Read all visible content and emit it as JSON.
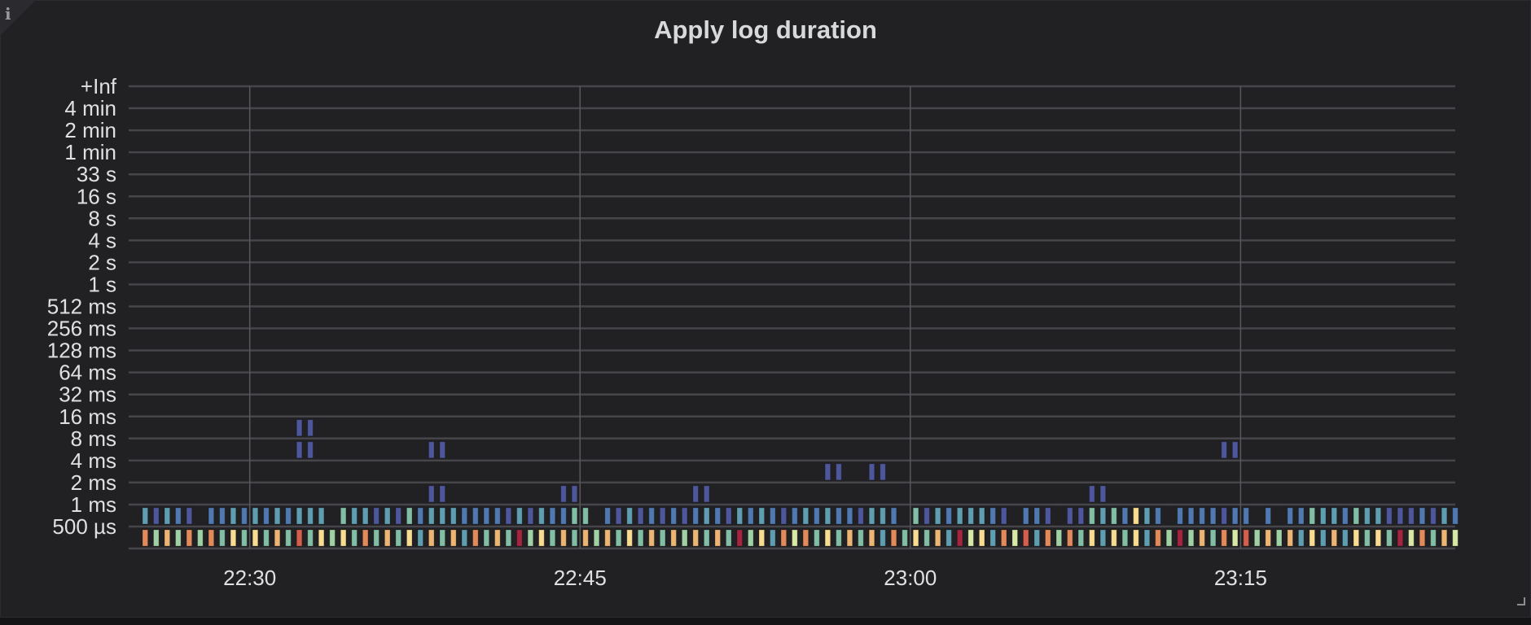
{
  "panel": {
    "title": "Apply log duration",
    "info_icon": "info-icon"
  },
  "chart_data": {
    "type": "heatmap",
    "title": "Apply log duration",
    "color_scheme": "spectral",
    "colors": {
      "background": "#212124",
      "grid": "#46464a",
      "text": "#e0e0e2"
    },
    "grid": true,
    "legend": "none",
    "y_ticks": [
      "+Inf",
      "4 min",
      "2 min",
      "1 min",
      "33 s",
      "16 s",
      "8 s",
      "4 s",
      "2 s",
      "1 s",
      "512 ms",
      "256 ms",
      "128 ms",
      "64 ms",
      "32 ms",
      "16 ms",
      "8 ms",
      "4 ms",
      "2 ms",
      "1 ms",
      "500 µs"
    ],
    "x_ticks": [
      "22:30",
      "22:45",
      "23:00",
      "23:15"
    ],
    "x_range": [
      "22:24:30",
      "23:24:45"
    ],
    "x_start": "22:25:00",
    "x_step_seconds": 30,
    "columns": 120,
    "intensity_max": 11,
    "rows": [
      {
        "bucket": "16 ms",
        "values": {
          "14": 1,
          "15": 1
        }
      },
      {
        "bucket": "8 ms",
        "values": {
          "14": 1,
          "15": 1,
          "26": 1,
          "27": 1,
          "98": 1,
          "99": 1
        }
      },
      {
        "bucket": "4 ms",
        "values": {
          "62": 1,
          "63": 1,
          "66": 1,
          "67": 1
        }
      },
      {
        "bucket": "2 ms",
        "values": {
          "26": 1,
          "27": 1,
          "38": 1,
          "39": 1,
          "50": 1,
          "51": 1,
          "86": 1,
          "87": 1
        }
      },
      {
        "bucket": "1 ms",
        "series": [
          3,
          1,
          3,
          2,
          1,
          0,
          2,
          2,
          3,
          2,
          3,
          2,
          3,
          2,
          3,
          3,
          3,
          0,
          4,
          3,
          3,
          1,
          3,
          1,
          4,
          2,
          3,
          3,
          3,
          2,
          2,
          2,
          2,
          1,
          3,
          1,
          3,
          2,
          2,
          4,
          4,
          0,
          2,
          1,
          3,
          1,
          2,
          1,
          2,
          1,
          2,
          3,
          2,
          1,
          3,
          2,
          3,
          2,
          1,
          2,
          3,
          2,
          3,
          2,
          2,
          1,
          3,
          3,
          2,
          0,
          4,
          1,
          3,
          2,
          3,
          3,
          3,
          2,
          1,
          0,
          2,
          2,
          1,
          0,
          1,
          1,
          4,
          3,
          4,
          2,
          7,
          3,
          2,
          0,
          2,
          2,
          2,
          2,
          1,
          2,
          2,
          0,
          2,
          0,
          2,
          2,
          4,
          3,
          3,
          2,
          4,
          3,
          3,
          1,
          1,
          1,
          2,
          1,
          3,
          2
        ]
      },
      {
        "bucket": "500 µs",
        "series": [
          9,
          5,
          8,
          5,
          9,
          5,
          9,
          4,
          7,
          4,
          7,
          4,
          8,
          4,
          10,
          4,
          7,
          5,
          7,
          4,
          9,
          4,
          8,
          4,
          7,
          3,
          8,
          4,
          8,
          3,
          9,
          4,
          8,
          4,
          11,
          5,
          7,
          4,
          8,
          4,
          8,
          5,
          8,
          4,
          7,
          4,
          8,
          4,
          8,
          5,
          8,
          4,
          8,
          4,
          11,
          5,
          7,
          3,
          9,
          6,
          9,
          4,
          7,
          4,
          8,
          4,
          8,
          3,
          9,
          4,
          7,
          4,
          8,
          3,
          11,
          6,
          7,
          3,
          9,
          6,
          10,
          3,
          9,
          5,
          9,
          4,
          7,
          3,
          7,
          4,
          7,
          3,
          9,
          5,
          11,
          5,
          8,
          4,
          9,
          6,
          10,
          5,
          8,
          5,
          8,
          3,
          7,
          3,
          8,
          3,
          7,
          4,
          7,
          4,
          11,
          6,
          9,
          4,
          8,
          6
        ]
      }
    ]
  }
}
